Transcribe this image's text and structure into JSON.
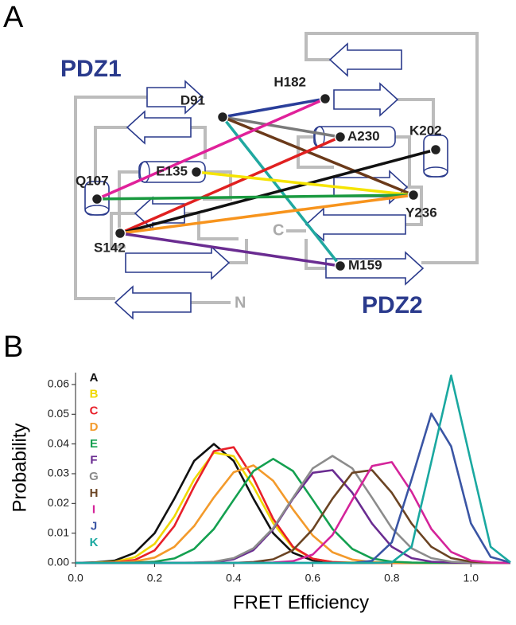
{
  "panel_a": {
    "label": "A",
    "domain_labels": [
      "PDZ1",
      "PDZ2"
    ],
    "residues": [
      "D91",
      "H182",
      "A230",
      "K202",
      "E135",
      "Q107",
      "Y236",
      "S142",
      "M159"
    ],
    "termini": [
      "C",
      "N"
    ]
  },
  "chart_data": {
    "type": "line",
    "panel_label": "B",
    "x_label": "FRET Efficiency",
    "y_label": "Probability",
    "xlim": [
      0,
      1.1
    ],
    "ylim": [
      0,
      0.064
    ],
    "xticks": [
      {
        "value": 0,
        "label": "0.0"
      },
      0.2,
      0.4,
      0.6,
      0.8,
      {
        "value": 1,
        "label": "1.0"
      }
    ],
    "yticks": [
      {
        "value": 0,
        "label": "0.00"
      },
      {
        "value": 0.01,
        "label": "0.01"
      },
      {
        "value": 0.02,
        "label": "0.02"
      },
      {
        "value": 0.03,
        "label": "0.03"
      },
      {
        "value": 0.04,
        "label": "0.04"
      },
      {
        "value": 0.05,
        "label": "0.05"
      },
      {
        "value": 0.06,
        "label": "0.06"
      }
    ],
    "x": [
      0,
      0.05,
      0.1,
      0.15,
      0.2,
      0.25,
      0.3,
      0.35,
      0.4,
      0.45,
      0.5,
      0.55,
      0.6,
      0.65,
      0.7,
      0.75,
      0.8,
      0.85,
      0.9,
      0.95,
      1.0,
      1.05,
      1.1
    ],
    "series": [
      {
        "name": "A",
        "color": "#111111",
        "values": [
          0,
          0.0002,
          0.0008,
          0.0034,
          0.01,
          0.0216,
          0.0343,
          0.04,
          0.0343,
          0.0216,
          0.01,
          0.0034,
          0.0008,
          0.0002,
          0,
          0,
          0,
          0,
          0,
          0,
          0,
          0,
          0
        ]
      },
      {
        "name": "B",
        "color": "#f0d800",
        "values": [
          0,
          0.0001,
          0.0004,
          0.0019,
          0.0064,
          0.0156,
          0.0281,
          0.0371,
          0.0359,
          0.0256,
          0.0134,
          0.0051,
          0.0014,
          0.0003,
          0.0001,
          0,
          0,
          0,
          0,
          0,
          0,
          0,
          0
        ]
      },
      {
        "name": "C",
        "color": "#e8202a",
        "values": [
          0,
          0,
          0.0002,
          0.001,
          0.0042,
          0.0124,
          0.0257,
          0.0376,
          0.0389,
          0.0285,
          0.0148,
          0.0054,
          0.0014,
          0.0003,
          0,
          0,
          0,
          0,
          0,
          0,
          0,
          0,
          0
        ]
      },
      {
        "name": "D",
        "color": "#f39a2b",
        "values": [
          0,
          0,
          0.0001,
          0.0005,
          0.0018,
          0.0054,
          0.0124,
          0.022,
          0.0305,
          0.0328,
          0.0276,
          0.018,
          0.0092,
          0.0036,
          0.0011,
          0.0003,
          0.0001,
          0,
          0,
          0,
          0,
          0,
          0
        ]
      },
      {
        "name": "E",
        "color": "#14a050",
        "values": [
          0,
          0,
          0,
          0.0001,
          0.0004,
          0.0015,
          0.0047,
          0.0114,
          0.0212,
          0.0309,
          0.035,
          0.0309,
          0.0212,
          0.0114,
          0.0047,
          0.0015,
          0.0004,
          0.0001,
          0,
          0,
          0,
          0,
          0
        ]
      },
      {
        "name": "F",
        "color": "#6a2c91",
        "values": [
          0,
          0,
          0,
          0,
          0,
          0,
          0,
          0.0003,
          0.0012,
          0.0043,
          0.0113,
          0.0216,
          0.0303,
          0.0312,
          0.0236,
          0.0132,
          0.0054,
          0.0016,
          0.0004,
          0.0001,
          0,
          0,
          0
        ]
      },
      {
        "name": "G",
        "color": "#8c8c8c",
        "values": [
          0,
          0,
          0,
          0,
          0,
          0,
          0.0001,
          0.0004,
          0.0016,
          0.0049,
          0.0117,
          0.0219,
          0.0318,
          0.036,
          0.0318,
          0.0219,
          0.0117,
          0.0049,
          0.0016,
          0.0004,
          0.0001,
          0,
          0
        ]
      },
      {
        "name": "H",
        "color": "#6b4423",
        "values": [
          0,
          0,
          0,
          0,
          0,
          0,
          0,
          0,
          0,
          0.0003,
          0.0012,
          0.0043,
          0.0113,
          0.0216,
          0.0303,
          0.0312,
          0.0236,
          0.0132,
          0.0054,
          0.0016,
          0.0004,
          0.0001,
          0
        ]
      },
      {
        "name": "I",
        "color": "#d4249a",
        "values": [
          0,
          0,
          0,
          0,
          0,
          0,
          0,
          0,
          0,
          0,
          0.0001,
          0.0006,
          0.0028,
          0.0094,
          0.0212,
          0.0326,
          0.0339,
          0.0239,
          0.0114,
          0.0037,
          0.0008,
          0.0001,
          0
        ]
      },
      {
        "name": "J",
        "color": "#3a55a4",
        "values": [
          0,
          0,
          0,
          0,
          0,
          0,
          0,
          0,
          0,
          0,
          0,
          0,
          0,
          0,
          0,
          0.0007,
          0.0069,
          0.0281,
          0.0502,
          0.0392,
          0.0133,
          0.002,
          0.0001
        ]
      },
      {
        "name": "K",
        "color": "#1aa8a0",
        "values": [
          0,
          0,
          0,
          0,
          0,
          0,
          0,
          0,
          0,
          0,
          0,
          0,
          0,
          0,
          0,
          0,
          0.0002,
          0.0054,
          0.034,
          0.063,
          0.034,
          0.0054,
          0.0002
        ]
      }
    ]
  }
}
